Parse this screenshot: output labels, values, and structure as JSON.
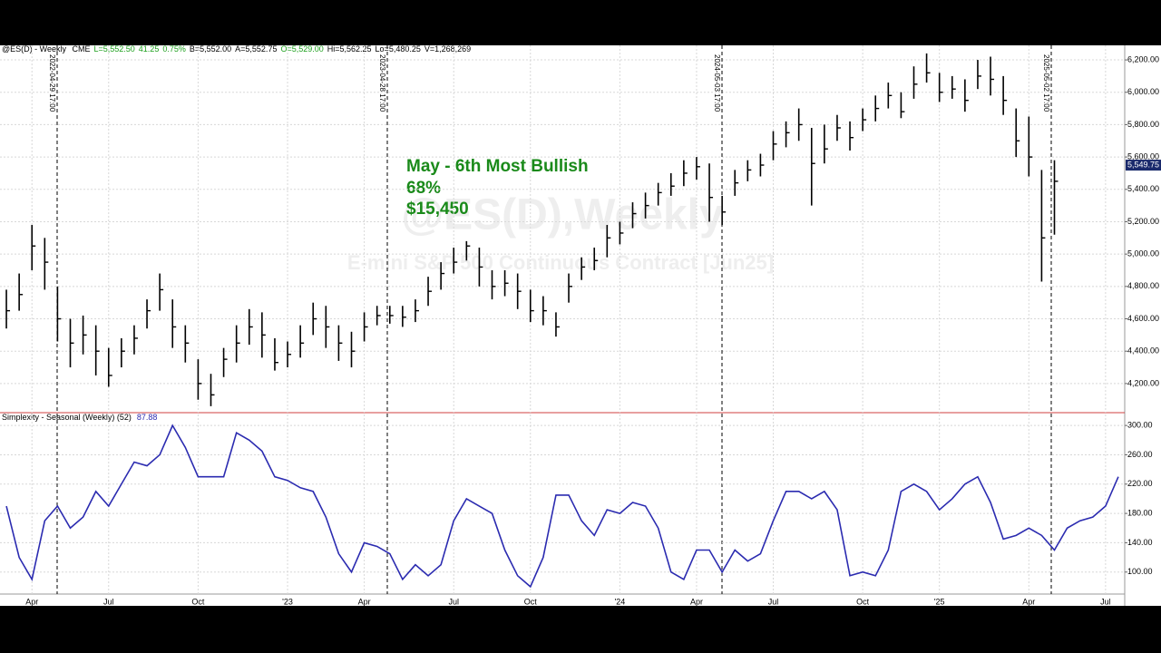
{
  "chart_data": [
    {
      "type": "ohlc",
      "title": "@ES(D) - Weekly",
      "exchange": "CME",
      "quote_fields": [
        "L=5,552.50",
        "41.25",
        "0.75%",
        "B=5,552.00",
        "A=5,552.75",
        "O=5,529.00",
        "Hi=5,562.25",
        "Lo=5,480.25",
        "V=1,268,269"
      ],
      "watermark": "@ES(D),Weekly",
      "watermark_subtitle": "E-mini S&P 500 Continuous Contract [Jun25]",
      "annotations": [
        "May - 6th Most Bullish",
        "68%",
        "$15,450"
      ],
      "vlines": [
        "2022-04-29 17:00",
        "2023-04-28 17:00",
        "2024-05-03 17:00",
        "2025-05-02 17:00"
      ],
      "last_price": {
        "value": 5549.75,
        "label": "5,549.75"
      },
      "color": "#000000",
      "ylim": [
        4020,
        6290
      ],
      "yticks": [
        {
          "value": 4200,
          "label": "4,200.00"
        },
        {
          "value": 4400,
          "label": "4,400.00"
        },
        {
          "value": 4600,
          "label": "4,600.00"
        },
        {
          "value": 4800,
          "label": "4,800.00"
        },
        {
          "value": 5000,
          "label": "5,000.00"
        },
        {
          "value": 5200,
          "label": "5,200.00"
        },
        {
          "value": 5400,
          "label": "5,400.00"
        },
        {
          "value": 5600,
          "label": "5,600.00"
        },
        {
          "value": 5800,
          "label": "5,800.00"
        },
        {
          "value": 6000,
          "label": "6,000.00"
        },
        {
          "value": 6200,
          "label": "6,200.00"
        }
      ],
      "grid": true,
      "high": [
        4780,
        4880,
        5180,
        5100,
        4800,
        4600,
        4620,
        4560,
        4420,
        4480,
        4560,
        4720,
        4880,
        4720,
        4560,
        4350,
        4260,
        4420,
        4560,
        4660,
        4640,
        4480,
        4460,
        4560,
        4700,
        4680,
        4560,
        4520,
        4640,
        4680,
        4680,
        4680,
        4720,
        4860,
        4950,
        5040,
        5080,
        5040,
        4900,
        4900,
        4880,
        4780,
        4740,
        4640,
        4880,
        4980,
        5040,
        5180,
        5200,
        5320,
        5380,
        5440,
        5500,
        5580,
        5600,
        5560,
        5360,
        5520,
        5580,
        5620,
        5760,
        5820,
        5900,
        5780,
        5800,
        5860,
        5820,
        5900,
        5980,
        6060,
        6000,
        6160,
        6240,
        6120,
        6100,
        6080,
        6200,
        6220,
        6100,
        5900,
        5850,
        5520,
        5580,
        null,
        null,
        null,
        null,
        null
      ],
      "low": [
        4540,
        4650,
        4900,
        4780,
        4460,
        4300,
        4380,
        4250,
        4180,
        4300,
        4380,
        4540,
        4650,
        4420,
        4330,
        4100,
        4060,
        4240,
        4330,
        4440,
        4360,
        4280,
        4300,
        4360,
        4500,
        4420,
        4340,
        4300,
        4460,
        4560,
        4570,
        4550,
        4580,
        4680,
        4780,
        4880,
        4960,
        4800,
        4720,
        4740,
        4660,
        4580,
        4560,
        4490,
        4700,
        4840,
        4900,
        4980,
        5060,
        5160,
        5220,
        5300,
        5360,
        5420,
        5460,
        5200,
        5180,
        5360,
        5450,
        5480,
        5580,
        5660,
        5700,
        5300,
        5560,
        5700,
        5640,
        5760,
        5820,
        5900,
        5840,
        5960,
        6060,
        5940,
        5960,
        5880,
        6020,
        5980,
        5860,
        5600,
        5480,
        4830,
        5120,
        null,
        null,
        null,
        null,
        null
      ],
      "close": [
        4650,
        4750,
        5050,
        4950,
        4600,
        4450,
        4500,
        4400,
        4250,
        4400,
        4480,
        4650,
        4780,
        4550,
        4450,
        4200,
        4130,
        4350,
        4450,
        4550,
        4500,
        4330,
        4380,
        4450,
        4600,
        4550,
        4450,
        4400,
        4550,
        4620,
        4620,
        4610,
        4650,
        4770,
        4880,
        4950,
        5050,
        4920,
        4800,
        4820,
        4770,
        4650,
        4650,
        4550,
        4800,
        4920,
        4960,
        5100,
        5130,
        5250,
        5300,
        5380,
        5420,
        5500,
        5540,
        5350,
        5260,
        5440,
        5520,
        5550,
        5680,
        5750,
        5800,
        5560,
        5650,
        5780,
        5720,
        5830,
        5900,
        5980,
        5880,
        6050,
        6120,
        6000,
        6020,
        5950,
        6100,
        6080,
        5950,
        5700,
        5600,
        5100,
        5450,
        null,
        null,
        null,
        null,
        null
      ]
    },
    {
      "type": "line",
      "title": "Simplexity - Seasonal (Weekly) (52)",
      "last_value": 87.88,
      "color": "#2b2bb0",
      "ylim": [
        70,
        315
      ],
      "yticks": [
        {
          "value": 100,
          "label": "100.00"
        },
        {
          "value": 140,
          "label": "140.00"
        },
        {
          "value": 180,
          "label": "180.00"
        },
        {
          "value": 220,
          "label": "220.00"
        },
        {
          "value": 260,
          "label": "260.00"
        },
        {
          "value": 300,
          "label": "300.00"
        }
      ],
      "grid": true,
      "categories": [
        null,
        null,
        "Apr",
        null,
        null,
        null,
        null,
        null,
        "Jul",
        null,
        null,
        null,
        null,
        null,
        null,
        "Oct",
        null,
        null,
        null,
        null,
        null,
        null,
        "'23",
        null,
        null,
        null,
        null,
        null,
        "Apr",
        null,
        null,
        null,
        null,
        null,
        null,
        "Jul",
        null,
        null,
        null,
        null,
        null,
        "Oct",
        null,
        null,
        null,
        null,
        null,
        null,
        "'24",
        null,
        null,
        null,
        null,
        null,
        "Apr",
        null,
        null,
        null,
        null,
        null,
        "Jul",
        null,
        null,
        null,
        null,
        null,
        null,
        "Oct",
        null,
        null,
        null,
        null,
        null,
        "'25",
        null,
        null,
        null,
        null,
        null,
        null,
        "Apr",
        null,
        null,
        null,
        null,
        null,
        "Jul",
        null
      ],
      "values": [
        190,
        120,
        90,
        170,
        190,
        160,
        175,
        210,
        190,
        220,
        250,
        245,
        260,
        300,
        270,
        230,
        230,
        230,
        290,
        280,
        265,
        230,
        225,
        215,
        210,
        175,
        125,
        100,
        140,
        135,
        125,
        90,
        110,
        95,
        110,
        170,
        200,
        190,
        180,
        130,
        95,
        80,
        120,
        205,
        205,
        170,
        150,
        185,
        180,
        195,
        190,
        160,
        100,
        90,
        130,
        130,
        100,
        130,
        115,
        125,
        170,
        210,
        210,
        200,
        210,
        185,
        95,
        100,
        95,
        130,
        210,
        220,
        210,
        185,
        200,
        220,
        230,
        195,
        145,
        150,
        160,
        150,
        130,
        160,
        170,
        175,
        190,
        230
      ]
    }
  ]
}
